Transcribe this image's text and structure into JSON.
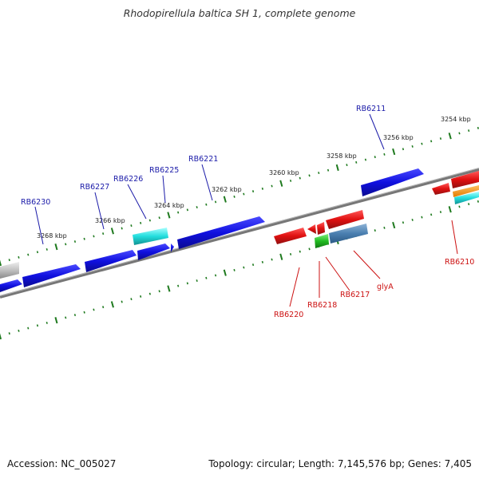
{
  "title": "Rhodopirellula baltica SH 1, complete genome",
  "footer": {
    "accession": "Accession: NC_005027",
    "topology": "Topology: circular; Length: 7,145,576 bp; Genes: 7,405"
  },
  "colors": {
    "forward_gene": "#1010e0",
    "reverse_gene": "#e01010",
    "tick": "#1f7a1f",
    "backbone": "#888888",
    "forward_label": "#1a1aa8",
    "reverse_label": "#cc1111"
  },
  "kbp_labels": [
    "3254 kbp",
    "3256 kbp",
    "3258 kbp",
    "3260 kbp",
    "3262 kbp",
    "3264 kbp",
    "3266 kbp",
    "3268 kbp"
  ],
  "forward_labels": [
    "RB6211",
    "RB6221",
    "RB6225",
    "RB6226",
    "RB6227",
    "RB6230"
  ],
  "reverse_labels": [
    "RB6210",
    "RB6217",
    "RB6218",
    "RB6220",
    "glyA"
  ]
}
